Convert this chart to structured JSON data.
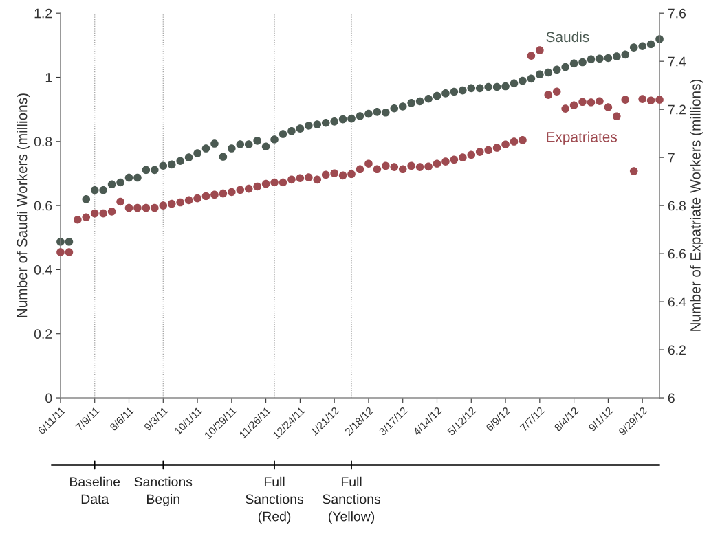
{
  "chart_data": {
    "type": "scatter",
    "ylabel": "Number of Saudi Workers (millions)",
    "y2label": "Number of Expatriate Workers (millions)",
    "x": [
      "2011-06-11",
      "2011-06-18",
      "2011-06-25",
      "2011-07-02",
      "2011-07-09",
      "2011-07-16",
      "2011-07-23",
      "2011-07-30",
      "2011-08-06",
      "2011-08-13",
      "2011-08-20",
      "2011-08-27",
      "2011-09-03",
      "2011-09-10",
      "2011-09-17",
      "2011-09-24",
      "2011-10-01",
      "2011-10-08",
      "2011-10-15",
      "2011-10-22",
      "2011-10-29",
      "2011-11-05",
      "2011-11-12",
      "2011-11-19",
      "2011-11-26",
      "2011-12-03",
      "2011-12-10",
      "2011-12-17",
      "2011-12-24",
      "2011-12-31",
      "2012-01-07",
      "2012-01-14",
      "2012-01-21",
      "2012-01-28",
      "2012-02-04",
      "2012-02-11",
      "2012-02-18",
      "2012-02-25",
      "2012-03-03",
      "2012-03-10",
      "2012-03-17",
      "2012-03-24",
      "2012-03-31",
      "2012-04-07",
      "2012-04-14",
      "2012-04-21",
      "2012-04-28",
      "2012-05-05",
      "2012-05-12",
      "2012-05-19",
      "2012-05-26",
      "2012-06-02",
      "2012-06-09",
      "2012-06-16",
      "2012-06-23",
      "2012-06-30",
      "2012-07-07",
      "2012-07-14",
      "2012-07-21",
      "2012-07-28",
      "2012-08-04",
      "2012-08-11",
      "2012-08-18",
      "2012-08-25",
      "2012-09-01",
      "2012-09-08",
      "2012-09-15",
      "2012-09-22",
      "2012-09-29",
      "2012-10-06",
      "2012-10-13"
    ],
    "series": [
      {
        "name": "Saudis",
        "color": "#4b5a52",
        "values": [
          0.487,
          0.487,
          null,
          0.62,
          0.648,
          0.648,
          0.666,
          0.672,
          0.687,
          0.687,
          0.711,
          0.711,
          0.724,
          0.728,
          0.739,
          0.75,
          0.763,
          0.778,
          0.793,
          0.752,
          0.778,
          0.791,
          0.791,
          0.802,
          0.784,
          0.806,
          0.823,
          0.832,
          0.84,
          0.849,
          0.853,
          0.858,
          0.862,
          0.869,
          0.871,
          0.879,
          0.886,
          0.892,
          0.89,
          0.903,
          0.909,
          0.92,
          0.925,
          0.933,
          0.942,
          0.95,
          0.955,
          0.959,
          0.966,
          0.966,
          0.97,
          0.97,
          0.972,
          0.981,
          0.989,
          0.996,
          1.009,
          1.015,
          1.024,
          1.032,
          1.043,
          1.047,
          1.056,
          1.058,
          1.06,
          1.065,
          1.071,
          1.093,
          1.097,
          1.103,
          1.119
        ]
      },
      {
        "name": "Expatriates",
        "color": "#9e4a50",
        "axis": "y2",
        "values": [
          6.606,
          6.606,
          6.741,
          6.751,
          6.767,
          6.767,
          6.775,
          6.816,
          6.79,
          6.79,
          6.79,
          6.79,
          6.8,
          6.807,
          6.813,
          6.822,
          6.83,
          6.839,
          6.845,
          6.85,
          6.856,
          6.865,
          6.87,
          6.879,
          6.89,
          6.896,
          6.896,
          6.908,
          6.914,
          6.917,
          6.908,
          6.928,
          6.934,
          6.925,
          6.931,
          6.951,
          6.974,
          6.951,
          6.965,
          6.96,
          6.951,
          6.965,
          6.96,
          6.962,
          6.974,
          6.983,
          6.991,
          7.0,
          7.011,
          7.023,
          7.031,
          7.04,
          7.054,
          7.066,
          7.072,
          7.423,
          7.446,
          7.26,
          7.274,
          7.203,
          7.217,
          7.231,
          7.229,
          7.234,
          7.209,
          7.171,
          7.24,
          6.943,
          7.243,
          7.237,
          7.24
        ]
      }
    ],
    "xlim": [
      "2011-06-11",
      "2012-10-13"
    ],
    "xticks": [
      {
        "value": "2011-06-11",
        "label": "6/11/11"
      },
      {
        "value": "2011-07-09",
        "label": "7/9/11"
      },
      {
        "value": "2011-08-06",
        "label": "8/6/11"
      },
      {
        "value": "2011-09-03",
        "label": "9/3/11"
      },
      {
        "value": "2011-10-01",
        "label": "10/1/11"
      },
      {
        "value": "2011-10-29",
        "label": "10/29/11"
      },
      {
        "value": "2011-11-26",
        "label": "11/26/11"
      },
      {
        "value": "2011-12-24",
        "label": "12/24/11"
      },
      {
        "value": "2012-01-21",
        "label": "1/21/12"
      },
      {
        "value": "2012-02-18",
        "label": "2/18/12"
      },
      {
        "value": "2012-03-17",
        "label": "3/17/12"
      },
      {
        "value": "2012-04-14",
        "label": "4/14/12"
      },
      {
        "value": "2012-05-12",
        "label": "5/12/12"
      },
      {
        "value": "2012-06-09",
        "label": "6/9/12"
      },
      {
        "value": "2012-07-07",
        "label": "7/7/12"
      },
      {
        "value": "2012-08-04",
        "label": "8/4/12"
      },
      {
        "value": "2012-09-01",
        "label": "9/1/12"
      },
      {
        "value": "2012-09-29",
        "label": "9/29/12"
      }
    ],
    "ylim": [
      0,
      1.2
    ],
    "yticks": [
      0,
      0.2,
      0.4,
      0.6,
      0.8,
      1,
      1.2
    ],
    "y2lim": [
      6,
      7.6
    ],
    "y2ticks": [
      6,
      6.2,
      6.4,
      6.6,
      6.8,
      7,
      7.2,
      7.4,
      7.6
    ],
    "ref_lines": [
      {
        "axis": "x",
        "value": "2011-07-09",
        "color": "#a0a0a0",
        "line_style": "dotted"
      },
      {
        "axis": "x",
        "value": "2011-09-03",
        "color": "#a0a0a0",
        "line_style": "dotted"
      },
      {
        "axis": "x",
        "value": "2011-12-03",
        "color": "#a0a0a0",
        "line_style": "dotted"
      },
      {
        "axis": "x",
        "value": "2012-02-04",
        "color": "#a0a0a0",
        "line_style": "dotted"
      }
    ],
    "annotations": [
      {
        "text": "Baseline\nData",
        "x": "2011-07-09"
      },
      {
        "text": "Sanctions\nBegin",
        "x": "2011-09-03"
      },
      {
        "text": "Full\nSanctions\n(Red)",
        "x": "2011-12-03"
      },
      {
        "text": "Full\nSanctions\n(Yellow)",
        "x": "2012-02-04"
      }
    ],
    "marker": "circle",
    "grid": false,
    "legend": false
  }
}
